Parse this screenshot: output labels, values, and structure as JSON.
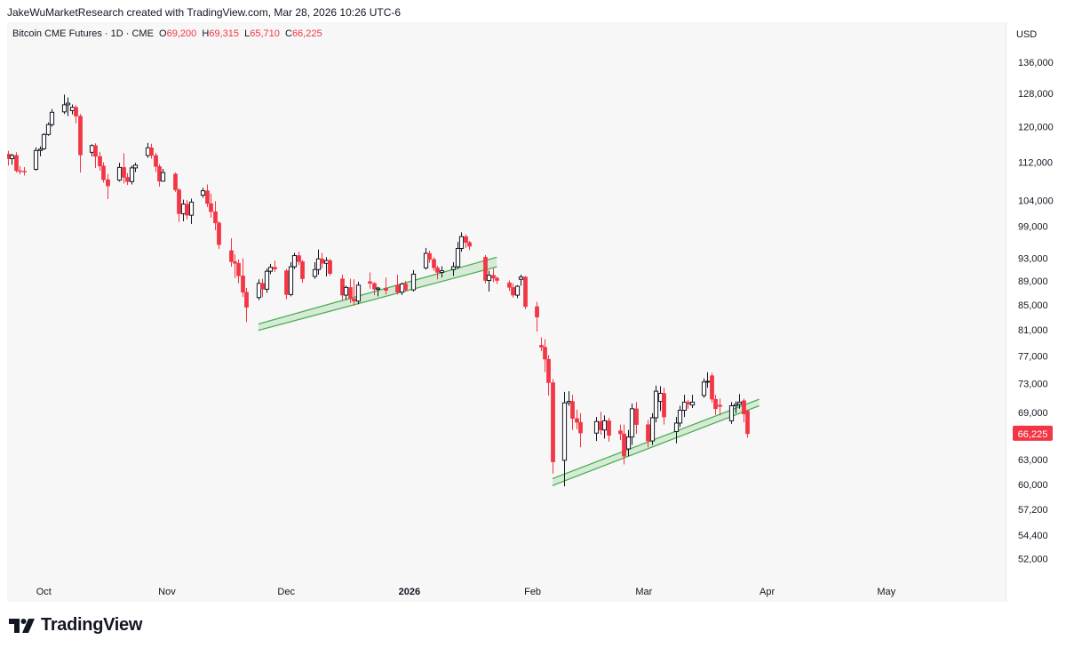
{
  "attribution": "JakeWuMarketResearch created with TradingView.com, Mar 28, 2026 10:26 UTC-6",
  "logo_text": "TradingView",
  "colors": {
    "up_body": "#ffffff",
    "up_border": "#131722",
    "down": "#f23645",
    "channel": "#4caf50",
    "channel_fill": "#c8e6c9",
    "price_label_bg": "#f23645"
  },
  "chart_data": {
    "type": "candlestick",
    "legend": {
      "symbol": "Bitcoin CME Futures · 1D · CME",
      "o_label": "O",
      "o_value": "69,200",
      "h_label": "H",
      "h_value": "69,315",
      "l_label": "L",
      "l_value": "65,710",
      "c_label": "C",
      "c_value": "66,225"
    },
    "currency": "USD",
    "last_price": 66225,
    "last_price_label": "66,225",
    "ylim": [
      49500,
      140000
    ],
    "y_scale": "log",
    "y_ticks": [
      {
        "value": 136000,
        "label": "136,000"
      },
      {
        "value": 128000,
        "label": "128,000"
      },
      {
        "value": 120000,
        "label": "120,000"
      },
      {
        "value": 112000,
        "label": "112,000"
      },
      {
        "value": 104000,
        "label": "104,000"
      },
      {
        "value": 99000,
        "label": "99,000"
      },
      {
        "value": 93000,
        "label": "93,000"
      },
      {
        "value": 89000,
        "label": "89,000"
      },
      {
        "value": 85000,
        "label": "85,000"
      },
      {
        "value": 81000,
        "label": "81,000"
      },
      {
        "value": 77000,
        "label": "77,000"
      },
      {
        "value": 73000,
        "label": "73,000"
      },
      {
        "value": 69000,
        "label": "69,000"
      },
      {
        "value": 63000,
        "label": "63,000"
      },
      {
        "value": 60000,
        "label": "60,000"
      },
      {
        "value": 57200,
        "label": "57,200"
      },
      {
        "value": 54400,
        "label": "54,400"
      },
      {
        "value": 52000,
        "label": "52,000"
      }
    ],
    "x_range": [
      "2025-09-22",
      "2026-05-31"
    ],
    "x_ticks": [
      {
        "date": "2025-10-01",
        "label": "Oct",
        "bold": false
      },
      {
        "date": "2025-11-01",
        "label": "Nov",
        "bold": false
      },
      {
        "date": "2025-12-01",
        "label": "Dec",
        "bold": false
      },
      {
        "date": "2026-01-01",
        "label": "2026",
        "bold": true
      },
      {
        "date": "2026-02-01",
        "label": "Feb",
        "bold": false
      },
      {
        "date": "2026-03-01",
        "label": "Mar",
        "bold": false
      },
      {
        "date": "2026-04-01",
        "label": "Apr",
        "bold": false
      },
      {
        "date": "2026-05-01",
        "label": "May",
        "bold": false
      }
    ],
    "channels": [
      {
        "name": "december-support-channel",
        "start": {
          "date": "2025-11-24",
          "lower": 80900,
          "upper": 81900
        },
        "end": {
          "date": "2026-01-23",
          "lower": 91500,
          "upper": 93200
        }
      },
      {
        "name": "february-support-channel",
        "start": {
          "date": "2026-02-06",
          "lower": 59900,
          "upper": 60700
        },
        "end": {
          "date": "2026-03-30",
          "lower": 69900,
          "upper": 70800
        }
      }
    ],
    "candles": [
      {
        "d": "2025-09-22",
        "o": 113800,
        "h": 114500,
        "l": 111300,
        "c": 112800
      },
      {
        "d": "2025-09-23",
        "o": 112800,
        "h": 113900,
        "l": 111500,
        "c": 113500
      },
      {
        "d": "2025-09-24",
        "o": 113500,
        "h": 114200,
        "l": 109800,
        "c": 110200
      },
      {
        "d": "2025-09-25",
        "o": 110200,
        "h": 111200,
        "l": 109400,
        "c": 110100
      },
      {
        "d": "2025-09-26",
        "o": 110100,
        "h": 111000,
        "l": 109200,
        "c": 109900
      },
      {
        "d": "2025-09-29",
        "o": 110500,
        "h": 115300,
        "l": 110200,
        "c": 114600
      },
      {
        "d": "2025-09-30",
        "o": 114600,
        "h": 115500,
        "l": 113300,
        "c": 114900
      },
      {
        "d": "2025-10-01",
        "o": 115000,
        "h": 118500,
        "l": 114700,
        "c": 118200
      },
      {
        "d": "2025-10-02",
        "o": 118200,
        "h": 121000,
        "l": 117900,
        "c": 120500
      },
      {
        "d": "2025-10-03",
        "o": 120500,
        "h": 124200,
        "l": 120000,
        "c": 123400
      },
      {
        "d": "2025-10-06",
        "o": 123500,
        "h": 127700,
        "l": 123000,
        "c": 125200
      },
      {
        "d": "2025-10-07",
        "o": 125200,
        "h": 127000,
        "l": 122500,
        "c": 125600
      },
      {
        "d": "2025-10-08",
        "o": 123800,
        "h": 125300,
        "l": 122900,
        "c": 124600
      },
      {
        "d": "2025-10-09",
        "o": 124600,
        "h": 125100,
        "l": 120800,
        "c": 122500
      },
      {
        "d": "2025-10-10",
        "o": 122500,
        "h": 123000,
        "l": 109800,
        "c": 113600
      },
      {
        "d": "2025-10-13",
        "o": 114200,
        "h": 116000,
        "l": 113300,
        "c": 115700
      },
      {
        "d": "2025-10-14",
        "o": 115700,
        "h": 116200,
        "l": 110800,
        "c": 113300
      },
      {
        "d": "2025-10-15",
        "o": 113300,
        "h": 114300,
        "l": 110200,
        "c": 111200
      },
      {
        "d": "2025-10-16",
        "o": 111200,
        "h": 112000,
        "l": 107700,
        "c": 108300
      },
      {
        "d": "2025-10-17",
        "o": 108300,
        "h": 109500,
        "l": 104300,
        "c": 107000
      },
      {
        "d": "2025-10-20",
        "o": 108200,
        "h": 111900,
        "l": 107900,
        "c": 110900
      },
      {
        "d": "2025-10-21",
        "o": 110900,
        "h": 114000,
        "l": 107500,
        "c": 108800
      },
      {
        "d": "2025-10-22",
        "o": 108800,
        "h": 109700,
        "l": 107200,
        "c": 107900
      },
      {
        "d": "2025-10-23",
        "o": 107900,
        "h": 111300,
        "l": 107300,
        "c": 110800
      },
      {
        "d": "2025-10-24",
        "o": 110800,
        "h": 111900,
        "l": 109900,
        "c": 111400
      },
      {
        "d": "2025-10-27",
        "o": 113500,
        "h": 116300,
        "l": 113000,
        "c": 115200
      },
      {
        "d": "2025-10-28",
        "o": 115200,
        "h": 116100,
        "l": 112800,
        "c": 113500
      },
      {
        "d": "2025-10-29",
        "o": 113500,
        "h": 114100,
        "l": 109900,
        "c": 111100
      },
      {
        "d": "2025-10-30",
        "o": 111100,
        "h": 111600,
        "l": 106900,
        "c": 108000
      },
      {
        "d": "2025-10-31",
        "o": 108000,
        "h": 110600,
        "l": 107900,
        "c": 109800
      },
      {
        "d": "2025-11-03",
        "o": 109500,
        "h": 109800,
        "l": 105800,
        "c": 106200
      },
      {
        "d": "2025-11-04",
        "o": 106200,
        "h": 106500,
        "l": 99800,
        "c": 101400
      },
      {
        "d": "2025-11-05",
        "o": 101400,
        "h": 104200,
        "l": 99900,
        "c": 103300
      },
      {
        "d": "2025-11-06",
        "o": 103300,
        "h": 104100,
        "l": 100300,
        "c": 101100
      },
      {
        "d": "2025-11-07",
        "o": 101100,
        "h": 104400,
        "l": 99400,
        "c": 103700
      },
      {
        "d": "2025-11-10",
        "o": 105100,
        "h": 106600,
        "l": 104600,
        "c": 106000
      },
      {
        "d": "2025-11-11",
        "o": 106000,
        "h": 107300,
        "l": 102700,
        "c": 103400
      },
      {
        "d": "2025-11-12",
        "o": 103400,
        "h": 105400,
        "l": 100600,
        "c": 101800
      },
      {
        "d": "2025-11-13",
        "o": 101800,
        "h": 103900,
        "l": 98200,
        "c": 99600
      },
      {
        "d": "2025-11-14",
        "o": 99600,
        "h": 99900,
        "l": 94700,
        "c": 95500
      },
      {
        "d": "2025-11-17",
        "o": 94400,
        "h": 96700,
        "l": 91500,
        "c": 92400
      },
      {
        "d": "2025-11-18",
        "o": 92400,
        "h": 93700,
        "l": 89500,
        "c": 92100
      },
      {
        "d": "2025-11-19",
        "o": 92100,
        "h": 92800,
        "l": 88600,
        "c": 89900
      },
      {
        "d": "2025-11-20",
        "o": 89900,
        "h": 93000,
        "l": 86300,
        "c": 87100
      },
      {
        "d": "2025-11-21",
        "o": 87100,
        "h": 87800,
        "l": 82200,
        "c": 84600
      },
      {
        "d": "2025-11-24",
        "o": 86200,
        "h": 89300,
        "l": 85800,
        "c": 88600
      },
      {
        "d": "2025-11-25",
        "o": 88600,
        "h": 89400,
        "l": 86300,
        "c": 87600
      },
      {
        "d": "2025-11-26",
        "o": 87600,
        "h": 91200,
        "l": 87000,
        "c": 90700
      },
      {
        "d": "2025-11-27",
        "o": 90700,
        "h": 92000,
        "l": 90200,
        "c": 91400
      },
      {
        "d": "2025-11-28",
        "o": 91400,
        "h": 92600,
        "l": 90600,
        "c": 91100
      },
      {
        "d": "2025-12-01",
        "o": 90800,
        "h": 91100,
        "l": 85900,
        "c": 86700
      },
      {
        "d": "2025-12-02",
        "o": 86700,
        "h": 92300,
        "l": 86400,
        "c": 91500
      },
      {
        "d": "2025-12-03",
        "o": 91500,
        "h": 94000,
        "l": 91100,
        "c": 93500
      },
      {
        "d": "2025-12-04",
        "o": 93500,
        "h": 94200,
        "l": 91800,
        "c": 92400
      },
      {
        "d": "2025-12-05",
        "o": 92400,
        "h": 92700,
        "l": 88700,
        "c": 89400
      },
      {
        "d": "2025-12-08",
        "o": 89800,
        "h": 92300,
        "l": 89400,
        "c": 91000
      },
      {
        "d": "2025-12-09",
        "o": 91000,
        "h": 94600,
        "l": 90100,
        "c": 92900
      },
      {
        "d": "2025-12-10",
        "o": 92900,
        "h": 94000,
        "l": 91200,
        "c": 92100
      },
      {
        "d": "2025-12-11",
        "o": 92100,
        "h": 93200,
        "l": 89800,
        "c": 92600
      },
      {
        "d": "2025-12-12",
        "o": 92600,
        "h": 92900,
        "l": 89900,
        "c": 90300
      },
      {
        "d": "2025-12-15",
        "o": 89400,
        "h": 90100,
        "l": 85800,
        "c": 86600
      },
      {
        "d": "2025-12-16",
        "o": 86600,
        "h": 88200,
        "l": 85900,
        "c": 87900
      },
      {
        "d": "2025-12-17",
        "o": 87900,
        "h": 89400,
        "l": 85300,
        "c": 86000
      },
      {
        "d": "2025-12-18",
        "o": 86000,
        "h": 89300,
        "l": 84900,
        "c": 85600
      },
      {
        "d": "2025-12-19",
        "o": 85600,
        "h": 88900,
        "l": 85100,
        "c": 88300
      },
      {
        "d": "2025-12-22",
        "o": 88900,
        "h": 90500,
        "l": 87700,
        "c": 88600
      },
      {
        "d": "2025-12-23",
        "o": 88600,
        "h": 88800,
        "l": 86600,
        "c": 87600
      },
      {
        "d": "2025-12-24",
        "o": 87600,
        "h": 88000,
        "l": 86400,
        "c": 87800
      },
      {
        "d": "2025-12-26",
        "o": 87800,
        "h": 89600,
        "l": 86700,
        "c": 87400
      },
      {
        "d": "2025-12-29",
        "o": 88300,
        "h": 90100,
        "l": 86700,
        "c": 87100
      },
      {
        "d": "2025-12-30",
        "o": 87100,
        "h": 88700,
        "l": 86600,
        "c": 88500
      },
      {
        "d": "2025-12-31",
        "o": 88500,
        "h": 89000,
        "l": 87200,
        "c": 87500
      },
      {
        "d": "2026-01-02",
        "o": 87500,
        "h": 90900,
        "l": 87200,
        "c": 90200
      },
      {
        "d": "2026-01-05",
        "o": 91300,
        "h": 94900,
        "l": 91000,
        "c": 93900
      },
      {
        "d": "2026-01-06",
        "o": 93900,
        "h": 94400,
        "l": 92200,
        "c": 92800
      },
      {
        "d": "2026-01-07",
        "o": 92800,
        "h": 93200,
        "l": 90700,
        "c": 91300
      },
      {
        "d": "2026-01-08",
        "o": 91300,
        "h": 91700,
        "l": 89300,
        "c": 90500
      },
      {
        "d": "2026-01-09",
        "o": 90500,
        "h": 91600,
        "l": 89600,
        "c": 90800
      },
      {
        "d": "2026-01-12",
        "o": 91000,
        "h": 92300,
        "l": 89900,
        "c": 91500
      },
      {
        "d": "2026-01-13",
        "o": 91500,
        "h": 96000,
        "l": 91100,
        "c": 94800
      },
      {
        "d": "2026-01-14",
        "o": 94800,
        "h": 97800,
        "l": 94200,
        "c": 97000
      },
      {
        "d": "2026-01-15",
        "o": 97000,
        "h": 97400,
        "l": 94900,
        "c": 95900
      },
      {
        "d": "2026-01-16",
        "o": 95900,
        "h": 96200,
        "l": 94500,
        "c": 95200
      },
      {
        "d": "2026-01-20",
        "o": 93200,
        "h": 93600,
        "l": 88600,
        "c": 89100
      },
      {
        "d": "2026-01-21",
        "o": 89100,
        "h": 90800,
        "l": 87200,
        "c": 90000
      },
      {
        "d": "2026-01-22",
        "o": 90000,
        "h": 91200,
        "l": 88800,
        "c": 89500
      },
      {
        "d": "2026-01-23",
        "o": 89500,
        "h": 89800,
        "l": 88500,
        "c": 89100
      },
      {
        "d": "2026-01-26",
        "o": 88700,
        "h": 89100,
        "l": 87300,
        "c": 87900
      },
      {
        "d": "2026-01-27",
        "o": 87900,
        "h": 88600,
        "l": 86200,
        "c": 86600
      },
      {
        "d": "2026-01-28",
        "o": 86600,
        "h": 88300,
        "l": 86100,
        "c": 88100
      },
      {
        "d": "2026-01-29",
        "o": 89300,
        "h": 90100,
        "l": 88200,
        "c": 89700
      },
      {
        "d": "2026-01-30",
        "o": 89700,
        "h": 89900,
        "l": 84300,
        "c": 84700
      },
      {
        "d": "2026-02-02",
        "o": 84700,
        "h": 85500,
        "l": 80700,
        "c": 83000
      },
      {
        "d": "2026-02-03",
        "o": 78600,
        "h": 79800,
        "l": 77700,
        "c": 78300
      },
      {
        "d": "2026-02-04",
        "o": 78300,
        "h": 79500,
        "l": 74600,
        "c": 76500
      },
      {
        "d": "2026-02-05",
        "o": 76500,
        "h": 77100,
        "l": 71300,
        "c": 73100
      },
      {
        "d": "2026-02-06",
        "o": 73100,
        "h": 73600,
        "l": 61300,
        "c": 62700
      },
      {
        "d": "2026-02-09",
        "o": 62900,
        "h": 71800,
        "l": 59800,
        "c": 70300
      },
      {
        "d": "2026-02-10",
        "o": 70300,
        "h": 71900,
        "l": 69900,
        "c": 70500
      },
      {
        "d": "2026-02-11",
        "o": 70500,
        "h": 71400,
        "l": 66700,
        "c": 68200
      },
      {
        "d": "2026-02-12",
        "o": 68200,
        "h": 69400,
        "l": 66800,
        "c": 67700
      },
      {
        "d": "2026-02-13",
        "o": 67700,
        "h": 68900,
        "l": 64500,
        "c": 66300
      },
      {
        "d": "2026-02-17",
        "o": 66300,
        "h": 68400,
        "l": 65300,
        "c": 67800
      },
      {
        "d": "2026-02-18",
        "o": 67800,
        "h": 69100,
        "l": 66100,
        "c": 66700
      },
      {
        "d": "2026-02-19",
        "o": 66700,
        "h": 68600,
        "l": 65600,
        "c": 67900
      },
      {
        "d": "2026-02-20",
        "o": 67900,
        "h": 68300,
        "l": 65200,
        "c": 66000
      },
      {
        "d": "2026-02-23",
        "o": 66600,
        "h": 67400,
        "l": 65400,
        "c": 66200
      },
      {
        "d": "2026-02-24",
        "o": 66200,
        "h": 67400,
        "l": 62400,
        "c": 63400
      },
      {
        "d": "2026-02-25",
        "o": 64300,
        "h": 66700,
        "l": 63400,
        "c": 65800
      },
      {
        "d": "2026-02-26",
        "o": 65800,
        "h": 70200,
        "l": 64800,
        "c": 69500
      },
      {
        "d": "2026-02-27",
        "o": 69500,
        "h": 70400,
        "l": 66200,
        "c": 67400
      },
      {
        "d": "2026-03-02",
        "o": 67400,
        "h": 68000,
        "l": 64500,
        "c": 65300
      },
      {
        "d": "2026-03-03",
        "o": 65300,
        "h": 68900,
        "l": 64800,
        "c": 68300
      },
      {
        "d": "2026-03-04",
        "o": 68300,
        "h": 72700,
        "l": 67700,
        "c": 71900
      },
      {
        "d": "2026-03-05",
        "o": 70500,
        "h": 72600,
        "l": 69200,
        "c": 71600
      },
      {
        "d": "2026-03-06",
        "o": 71600,
        "h": 72400,
        "l": 67400,
        "c": 68400
      },
      {
        "d": "2026-03-09",
        "o": 66500,
        "h": 68400,
        "l": 65000,
        "c": 67600
      },
      {
        "d": "2026-03-10",
        "o": 67600,
        "h": 69900,
        "l": 67100,
        "c": 69300
      },
      {
        "d": "2026-03-11",
        "o": 69300,
        "h": 71400,
        "l": 68400,
        "c": 70400
      },
      {
        "d": "2026-03-12",
        "o": 70400,
        "h": 70700,
        "l": 69500,
        "c": 70100
      },
      {
        "d": "2026-03-13",
        "o": 70000,
        "h": 71400,
        "l": 69600,
        "c": 70400
      },
      {
        "d": "2026-03-16",
        "o": 71300,
        "h": 73700,
        "l": 71000,
        "c": 73200
      },
      {
        "d": "2026-03-17",
        "o": 73200,
        "h": 74600,
        "l": 72400,
        "c": 73300
      },
      {
        "d": "2026-03-18",
        "o": 74100,
        "h": 74500,
        "l": 70300,
        "c": 70800
      },
      {
        "d": "2026-03-19",
        "o": 70800,
        "h": 71400,
        "l": 68700,
        "c": 69500
      },
      {
        "d": "2026-03-20",
        "o": 70000,
        "h": 70900,
        "l": 68600,
        "c": 69800
      },
      {
        "d": "2026-03-23",
        "o": 67900,
        "h": 70400,
        "l": 67500,
        "c": 69900
      },
      {
        "d": "2026-03-24",
        "o": 69900,
        "h": 70500,
        "l": 68900,
        "c": 70100
      },
      {
        "d": "2026-03-25",
        "o": 70100,
        "h": 71500,
        "l": 69500,
        "c": 70400
      },
      {
        "d": "2026-03-26",
        "o": 70600,
        "h": 70900,
        "l": 67700,
        "c": 68800
      },
      {
        "d": "2026-03-27",
        "o": 69200,
        "h": 69315,
        "l": 65710,
        "c": 66225
      }
    ]
  }
}
